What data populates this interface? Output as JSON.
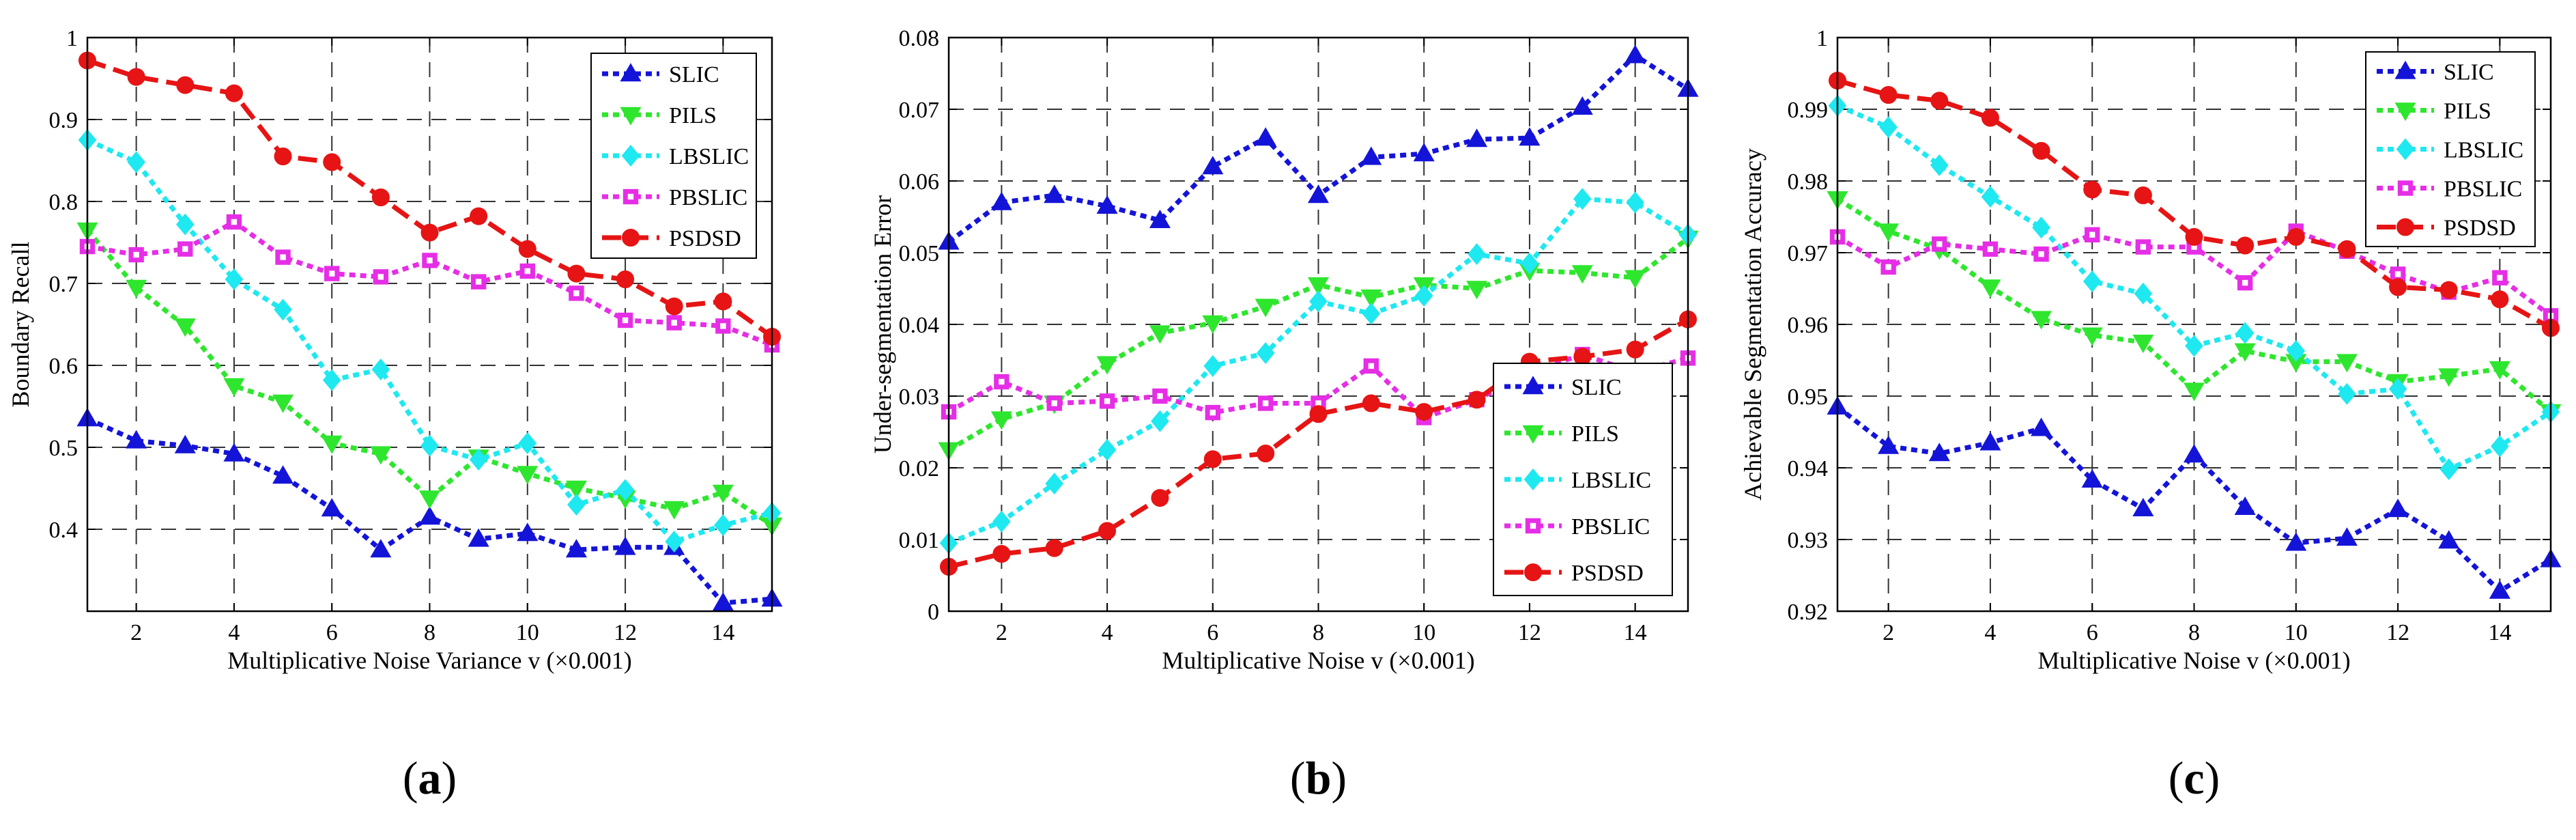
{
  "colors": {
    "SLIC": "#1414d8",
    "PILS": "#2ee62e",
    "LBSLIC": "#1ee8f0",
    "PBSLIC": "#e62ee6",
    "PSDSD": "#e61414"
  },
  "chart_data": [
    {
      "type": "line",
      "panel_label": "(a)",
      "xlabel": "Multiplicative Noise Variance v (×0.001)",
      "ylabel": "Boundary Recall",
      "xlim": [
        1,
        15
      ],
      "ylim": [
        0.3,
        1.0
      ],
      "xticks": [
        2,
        4,
        6,
        8,
        10,
        12,
        14
      ],
      "yticks": [
        0.4,
        0.5,
        0.6,
        0.7,
        0.8,
        0.9,
        1
      ],
      "ytick_labels": [
        "0.4",
        "0.5",
        "0.6",
        "0.7",
        "0.8",
        "0.9",
        "1"
      ],
      "legend_position": "top-right",
      "x": [
        1,
        2,
        3,
        4,
        5,
        6,
        7,
        8,
        9,
        10,
        11,
        12,
        13,
        14,
        15
      ],
      "series": [
        {
          "name": "SLIC",
          "marker": "triangle-up",
          "values": [
            0.535,
            0.508,
            0.502,
            0.492,
            0.465,
            0.425,
            0.375,
            0.415,
            0.388,
            0.395,
            0.375,
            0.378,
            0.378,
            0.31,
            0.315
          ]
        },
        {
          "name": "PILS",
          "marker": "triangle-down",
          "values": [
            0.765,
            0.695,
            0.648,
            0.575,
            0.555,
            0.505,
            0.492,
            0.438,
            0.488,
            0.468,
            0.45,
            0.438,
            0.425,
            0.445,
            0.405
          ]
        },
        {
          "name": "LBSLIC",
          "marker": "diamond",
          "values": [
            0.875,
            0.848,
            0.772,
            0.705,
            0.668,
            0.582,
            0.595,
            0.502,
            0.485,
            0.505,
            0.43,
            0.448,
            0.385,
            0.405,
            0.42
          ]
        },
        {
          "name": "PBSLIC",
          "marker": "square",
          "values": [
            0.745,
            0.735,
            0.742,
            0.775,
            0.732,
            0.712,
            0.708,
            0.728,
            0.702,
            0.715,
            0.688,
            0.655,
            0.652,
            0.648,
            0.625
          ]
        },
        {
          "name": "PSDSD",
          "marker": "circle",
          "values": [
            0.972,
            0.952,
            0.942,
            0.932,
            0.855,
            0.848,
            0.805,
            0.762,
            0.782,
            0.742,
            0.712,
            0.705,
            0.672,
            0.678,
            0.635
          ]
        }
      ]
    },
    {
      "type": "line",
      "panel_label": "(b)",
      "xlabel": "Multiplicative Noise v (×0.001)",
      "ylabel": "Under-segmentation Error",
      "xlim": [
        1,
        15
      ],
      "ylim": [
        0,
        0.08
      ],
      "xticks": [
        2,
        4,
        6,
        8,
        10,
        12,
        14
      ],
      "yticks": [
        0,
        0.01,
        0.02,
        0.03,
        0.04,
        0.05,
        0.06,
        0.07,
        0.08
      ],
      "ytick_labels": [
        "0",
        "0.01",
        "0.02",
        "0.03",
        "0.04",
        "0.05",
        "0.06",
        "0.07",
        "0.08"
      ],
      "legend_position": "bottom-right",
      "x": [
        1,
        2,
        3,
        4,
        5,
        6,
        7,
        8,
        9,
        10,
        11,
        12,
        13,
        14,
        15
      ],
      "series": [
        {
          "name": "SLIC",
          "marker": "triangle-up",
          "values": [
            0.0515,
            0.057,
            0.058,
            0.0565,
            0.0545,
            0.062,
            0.066,
            0.058,
            0.0633,
            0.0638,
            0.0658,
            0.066,
            0.0703,
            0.0775,
            0.0728
          ]
        },
        {
          "name": "PILS",
          "marker": "triangle-down",
          "values": [
            0.0225,
            0.0268,
            0.029,
            0.0345,
            0.0388,
            0.0402,
            0.0425,
            0.0455,
            0.0438,
            0.0455,
            0.045,
            0.0475,
            0.0472,
            0.0465,
            0.052
          ]
        },
        {
          "name": "LBSLIC",
          "marker": "diamond",
          "values": [
            0.0095,
            0.0125,
            0.0178,
            0.0225,
            0.0265,
            0.0342,
            0.036,
            0.0432,
            0.0415,
            0.044,
            0.0498,
            0.0485,
            0.0575,
            0.057,
            0.0525
          ]
        },
        {
          "name": "PBSLIC",
          "marker": "square",
          "values": [
            0.0278,
            0.032,
            0.029,
            0.0293,
            0.03,
            0.0277,
            0.029,
            0.029,
            0.0342,
            0.027,
            0.0295,
            0.0333,
            0.0358,
            0.0333,
            0.0353
          ]
        },
        {
          "name": "PSDSD",
          "marker": "circle",
          "values": [
            0.0062,
            0.008,
            0.0088,
            0.0112,
            0.0158,
            0.0212,
            0.022,
            0.0275,
            0.029,
            0.0278,
            0.0295,
            0.0348,
            0.0355,
            0.0365,
            0.0407
          ]
        }
      ]
    },
    {
      "type": "line",
      "panel_label": "(c)",
      "xlabel": "Multiplicative Noise v (×0.001)",
      "ylabel": "Achievable Segmentation Accuracy",
      "xlim": [
        1,
        15
      ],
      "ylim": [
        0.92,
        1.0
      ],
      "xticks": [
        2,
        4,
        6,
        8,
        10,
        12,
        14
      ],
      "yticks": [
        0.92,
        0.93,
        0.94,
        0.95,
        0.96,
        0.97,
        0.98,
        0.99,
        1
      ],
      "ytick_labels": [
        "0.92",
        "0.93",
        "0.94",
        "0.95",
        "0.96",
        "0.97",
        "0.98",
        "0.99",
        "1"
      ],
      "legend_position": "top-right",
      "x": [
        1,
        2,
        3,
        4,
        5,
        6,
        7,
        8,
        9,
        10,
        11,
        12,
        13,
        14,
        15
      ],
      "series": [
        {
          "name": "SLIC",
          "marker": "triangle-up",
          "values": [
            0.9485,
            0.943,
            0.942,
            0.9435,
            0.9455,
            0.9383,
            0.9343,
            0.9418,
            0.9345,
            0.9295,
            0.9302,
            0.9342,
            0.9298,
            0.9228,
            0.9272
          ]
        },
        {
          "name": "PILS",
          "marker": "triangle-down",
          "values": [
            0.9775,
            0.973,
            0.9705,
            0.9652,
            0.9608,
            0.9585,
            0.9575,
            0.9508,
            0.9563,
            0.9548,
            0.9548,
            0.952,
            0.9528,
            0.9538,
            0.9478
          ]
        },
        {
          "name": "LBSLIC",
          "marker": "diamond",
          "values": [
            0.9905,
            0.9875,
            0.9822,
            0.9778,
            0.9735,
            0.966,
            0.9643,
            0.957,
            0.9588,
            0.9563,
            0.9503,
            0.951,
            0.9398,
            0.943,
            0.9478
          ]
        },
        {
          "name": "PBSLIC",
          "marker": "square",
          "values": [
            0.9722,
            0.968,
            0.9712,
            0.9705,
            0.9698,
            0.9725,
            0.9708,
            0.9708,
            0.9658,
            0.973,
            0.9702,
            0.967,
            0.9645,
            0.9665,
            0.9612
          ]
        },
        {
          "name": "PSDSD",
          "marker": "circle",
          "values": [
            0.994,
            0.992,
            0.9912,
            0.9888,
            0.9842,
            0.9788,
            0.978,
            0.9722,
            0.971,
            0.9722,
            0.9705,
            0.9652,
            0.9648,
            0.9635,
            0.9595
          ]
        }
      ]
    }
  ]
}
